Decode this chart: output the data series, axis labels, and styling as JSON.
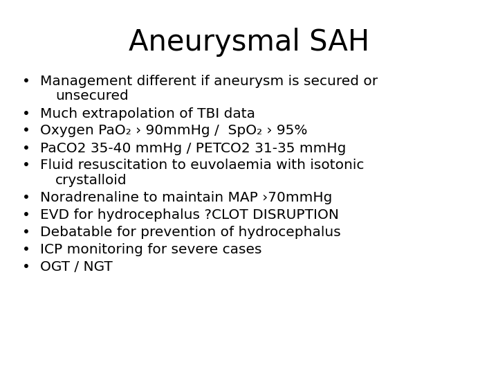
{
  "title": "Aneurysmal SAH",
  "title_fontsize": 30,
  "bullet_fontsize": 14.5,
  "background_color": "#ffffff",
  "text_color": "#000000",
  "bullet_lines": [
    [
      "Management different if aneurysm is secured or",
      "unsecured"
    ],
    [
      "Much extrapolation of TBI data"
    ],
    [
      "Oxygen PaO₂ › 90mmHg /  SpO₂ › 95%"
    ],
    [
      "PaCO2 35-40 mmHg / PETCO2 31-35 mmHg"
    ],
    [
      "Fluid resuscitation to euvolaemia with isotonic",
      "crystalloid"
    ],
    [
      "Noradrenaline to maintain MAP ›70mmHg"
    ],
    [
      "EVD for hydrocephalus ?CLOT DISRUPTION"
    ],
    [
      "Debatable for prevention of hydrocephalus"
    ],
    [
      "ICP monitoring for severe cases"
    ],
    [
      "OGT / NGT"
    ]
  ],
  "preferred_fonts": [
    "Chalkboard SE",
    "Chalkboard",
    "Comic Sans MS",
    "Segoe Print",
    "Patrick Hand SC"
  ],
  "fallback_font": "DejaVu Sans"
}
